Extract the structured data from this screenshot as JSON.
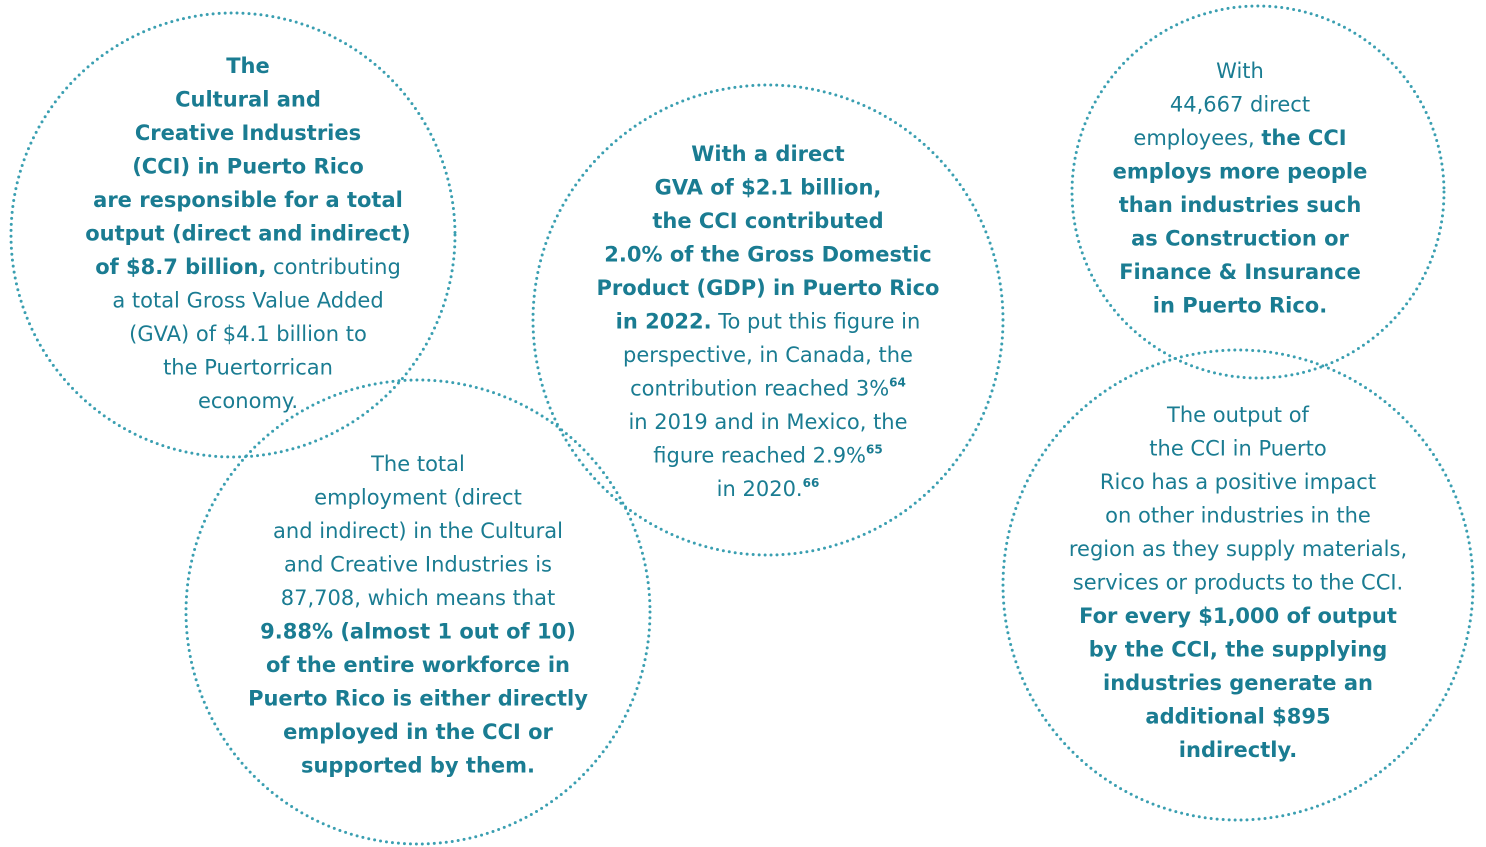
{
  "circles": [
    {
      "lines": [
        [
          {
            "text": "The",
            "style": "bold"
          }
        ],
        [
          {
            "text": "Cultural and",
            "style": "bold"
          }
        ],
        [
          {
            "text": "Creative Industries",
            "style": "bold"
          }
        ],
        [
          {
            "text": "(CCI) in Puerto Rico",
            "style": "bold"
          }
        ],
        [
          {
            "text": "are responsible for a total",
            "style": "bold"
          }
        ],
        [
          {
            "text": "output (direct and indirect)",
            "style": "bold"
          }
        ],
        [
          {
            "text": "of $8.7 billion,",
            "style": "bold"
          },
          {
            "text": " contributing",
            "style": "regular"
          }
        ],
        [
          {
            "text": "a total Gross Value Added",
            "style": "regular"
          }
        ],
        [
          {
            "text": "(GVA) of $4.1 billion to",
            "style": "regular"
          }
        ],
        [
          {
            "text": "the Puertorrican",
            "style": "regular"
          }
        ],
        [
          {
            "text": "economy.",
            "style": "regular"
          }
        ]
      ]
    },
    {
      "lines": [
        [
          {
            "text": "The total",
            "style": "regular"
          }
        ],
        [
          {
            "text": "employment (direct",
            "style": "regular"
          }
        ],
        [
          {
            "text": "and indirect) in the Cultural",
            "style": "regular"
          }
        ],
        [
          {
            "text": "and Creative Industries is",
            "style": "regular"
          }
        ],
        [
          {
            "text": "87,708, which means that",
            "style": "regular"
          }
        ],
        [
          {
            "text": "9.88% (almost 1 out of 10)",
            "style": "bold"
          }
        ],
        [
          {
            "text": "of the entire workforce in",
            "style": "bold"
          }
        ],
        [
          {
            "text": "Puerto Rico is either directly",
            "style": "bold"
          }
        ],
        [
          {
            "text": "employed in the CCI or",
            "style": "bold"
          }
        ],
        [
          {
            "text": "supported by them.",
            "style": "bold"
          }
        ]
      ]
    },
    {
      "lines": [
        [
          {
            "text": "With a direct",
            "style": "bold"
          }
        ],
        [
          {
            "text": "GVA of $2.1 billion,",
            "style": "bold"
          }
        ],
        [
          {
            "text": "the CCI contributed",
            "style": "bold"
          }
        ],
        [
          {
            "text": "2.0% of the Gross Domestic",
            "style": "bold"
          }
        ],
        [
          {
            "text": "Product (GDP) in Puerto Rico",
            "style": "bold"
          }
        ],
        [
          {
            "text": "in 2022.",
            "style": "bold"
          },
          {
            "text": " To put this figure in",
            "style": "regular"
          }
        ],
        [
          {
            "text": "perspective, in Canada, the",
            "style": "regular"
          }
        ],
        [
          {
            "text": "contribution reached 3%",
            "style": "regular"
          },
          {
            "text": "64",
            "style": "sup"
          }
        ],
        [
          {
            "text": "in 2019 and in Mexico, the",
            "style": "regular"
          }
        ],
        [
          {
            "text": "figure reached 2.9%",
            "style": "regular"
          },
          {
            "text": "65",
            "style": "sup"
          }
        ],
        [
          {
            "text": "in 2020.",
            "style": "regular"
          },
          {
            "text": "66",
            "style": "sup"
          }
        ]
      ]
    },
    {
      "lines": [
        [
          {
            "text": "With",
            "style": "regular"
          }
        ],
        [
          {
            "text": "44,667 direct",
            "style": "regular"
          }
        ],
        [
          {
            "text": "employees, ",
            "style": "regular"
          },
          {
            "text": "the CCI",
            "style": "bold"
          }
        ],
        [
          {
            "text": "employs more people",
            "style": "bold"
          }
        ],
        [
          {
            "text": "than industries such",
            "style": "bold"
          }
        ],
        [
          {
            "text": "as Construction or",
            "style": "bold"
          }
        ],
        [
          {
            "text": "Finance & Insurance",
            "style": "bold"
          }
        ],
        [
          {
            "text": "in Puerto Rico.",
            "style": "bold"
          }
        ]
      ]
    },
    {
      "lines": [
        [
          {
            "text": "The output of",
            "style": "regular"
          }
        ],
        [
          {
            "text": "the CCI in Puerto",
            "style": "regular"
          }
        ],
        [
          {
            "text": "Rico has a positive impact",
            "style": "regular"
          }
        ],
        [
          {
            "text": "on other industries in the",
            "style": "regular"
          }
        ],
        [
          {
            "text": "region as they supply materials,",
            "style": "regular"
          }
        ],
        [
          {
            "text": "services or products to the CCI.",
            "style": "regular"
          }
        ],
        [
          {
            "text": "For every $1,000 of output",
            "style": "bold"
          }
        ],
        [
          {
            "text": "by the CCI, the supplying",
            "style": "bold"
          }
        ],
        [
          {
            "text": "industries generate an",
            "style": "bold"
          }
        ],
        [
          {
            "text": "additional $895",
            "style": "bold"
          }
        ],
        [
          {
            "text": "indirectly.",
            "style": "bold"
          }
        ]
      ]
    }
  ]
}
